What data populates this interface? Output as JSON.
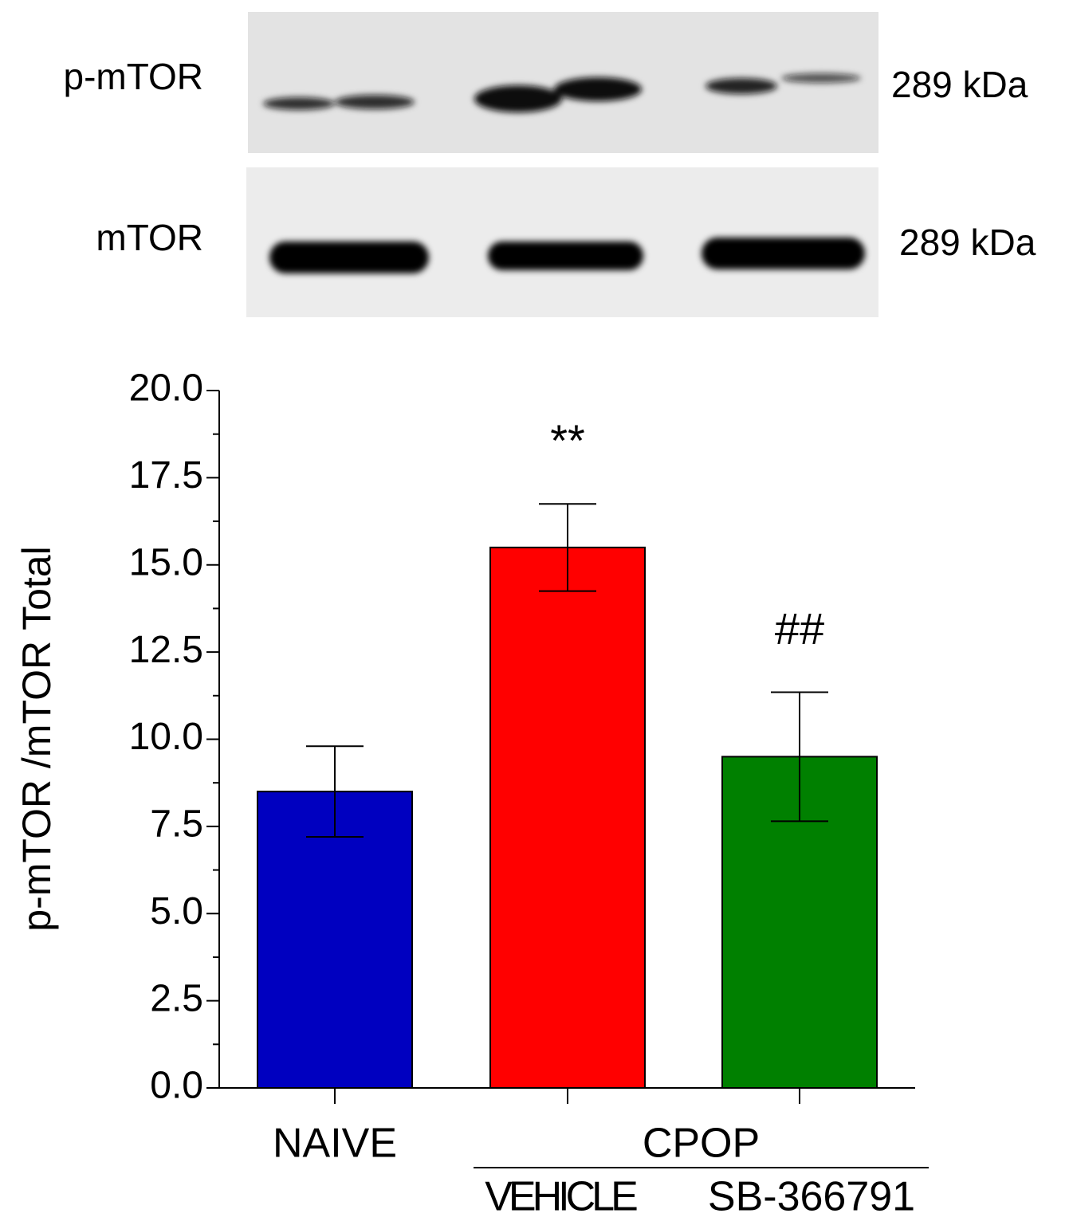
{
  "blots": [
    {
      "label": "p-mTOR",
      "size": "289 kDa"
    },
    {
      "label": "mTOR",
      "size": "289 kDa"
    }
  ],
  "chart_data": {
    "type": "bar",
    "categories": [
      "NAIVE",
      "VEHICLE",
      "SB-366791"
    ],
    "values": [
      8.5,
      15.5,
      9.5
    ],
    "errors": [
      1.3,
      1.25,
      1.85
    ],
    "colors": [
      "#0000c0",
      "#ff0000",
      "#008000"
    ],
    "annotations": [
      null,
      "**",
      "##"
    ],
    "groups": [
      {
        "label": "CPOP",
        "members": [
          "VEHICLE",
          "SB-366791"
        ]
      }
    ],
    "ylabel": "p-mTOR /mTOR Total",
    "ylim": [
      0,
      20
    ],
    "yticks": [
      {
        "value": 0,
        "label": "0.0"
      },
      {
        "value": 2.5,
        "label": "2.5"
      },
      {
        "value": 5,
        "label": "5.0"
      },
      {
        "value": 7.5,
        "label": "7.5"
      },
      {
        "value": 10,
        "label": "10.0"
      },
      {
        "value": 12.5,
        "label": "12.5"
      },
      {
        "value": 15,
        "label": "15.0"
      },
      {
        "value": 17.5,
        "label": "17.5"
      },
      {
        "value": 20,
        "label": "20.0"
      }
    ],
    "minor_yticks": [
      1.25,
      3.75,
      6.25,
      8.75,
      11.25,
      13.75,
      16.25,
      18.75
    ]
  }
}
